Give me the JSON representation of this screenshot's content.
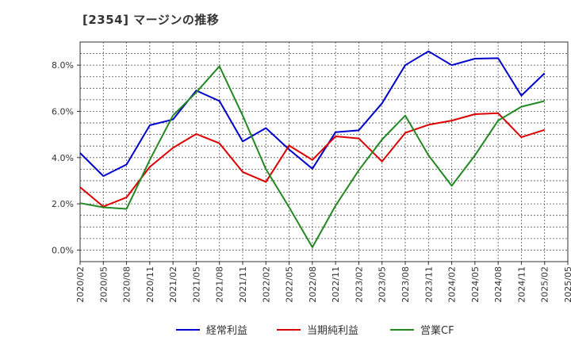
{
  "chart_data": {
    "type": "line",
    "title": "[2354]  マージンの推移",
    "xlabel": "",
    "ylabel": "",
    "x": [
      "2020/02",
      "2020/05",
      "2020/08",
      "2020/11",
      "2021/02",
      "2021/05",
      "2021/08",
      "2021/11",
      "2022/02",
      "2022/05",
      "2022/08",
      "2022/11",
      "2023/02",
      "2023/05",
      "2023/08",
      "2023/11",
      "2024/02",
      "2024/05",
      "2024/08",
      "2024/11",
      "2025/02",
      "2025/05"
    ],
    "ylim": [
      -0.5,
      9.0
    ],
    "yticks": [
      0,
      2,
      4,
      6,
      8
    ],
    "ytick_labels": [
      "0.0%",
      "2.0%",
      "4.0%",
      "6.0%",
      "8.0%"
    ],
    "grid": true,
    "legend_position": "bottom",
    "series": [
      {
        "name": "経常利益",
        "color": "#0000cc",
        "values": [
          4.2,
          3.2,
          3.7,
          5.4,
          5.65,
          6.9,
          6.45,
          4.7,
          5.28,
          4.35,
          3.52,
          5.1,
          5.18,
          6.35,
          8.0,
          8.6,
          8.0,
          8.28,
          8.3,
          6.68,
          7.65,
          null
        ]
      },
      {
        "name": "当期純利益",
        "color": "#dd0000",
        "values": [
          2.72,
          1.88,
          2.28,
          3.6,
          4.42,
          5.02,
          4.62,
          3.38,
          2.95,
          4.52,
          3.9,
          4.92,
          4.83,
          3.83,
          5.07,
          5.42,
          5.6,
          5.88,
          5.92,
          4.88,
          5.2,
          null
        ]
      },
      {
        "name": "営業CF",
        "color": "#228822",
        "values": [
          2.03,
          1.85,
          1.78,
          3.9,
          5.82,
          6.82,
          7.95,
          5.82,
          3.5,
          1.85,
          0.12,
          1.92,
          3.45,
          4.78,
          5.82,
          4.1,
          2.78,
          4.1,
          5.6,
          6.2,
          6.45,
          null
        ]
      }
    ]
  }
}
